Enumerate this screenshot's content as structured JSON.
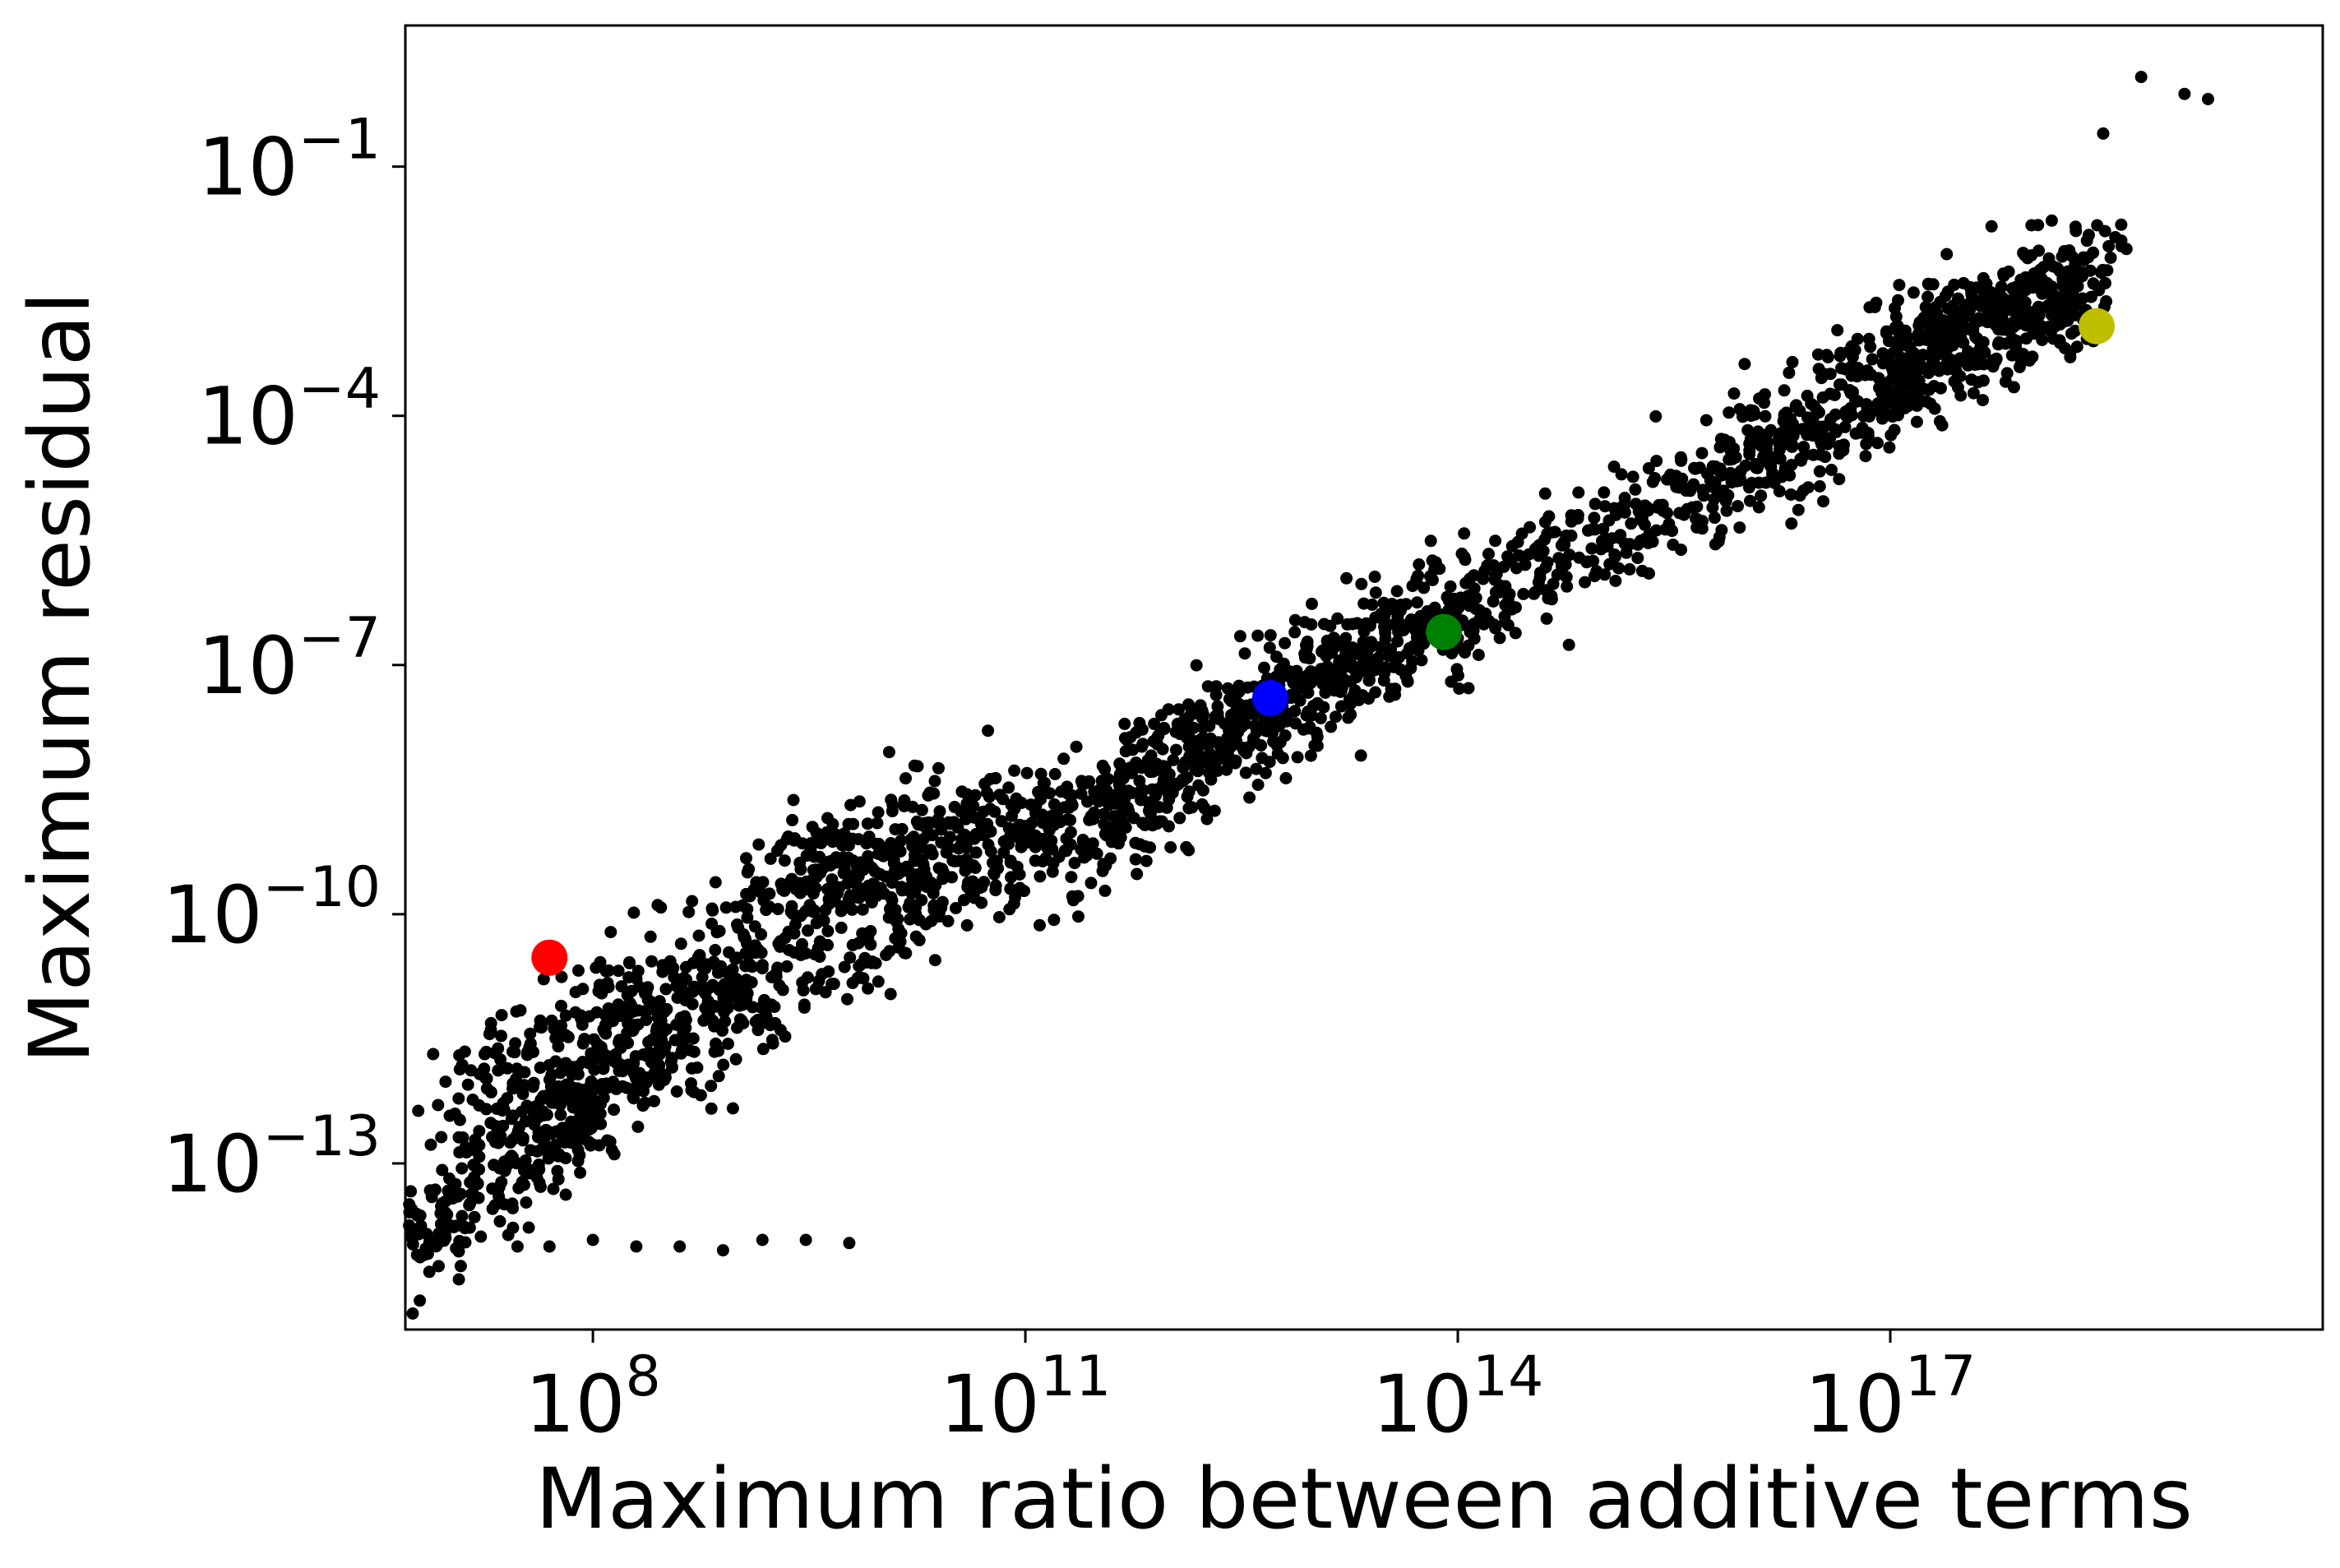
{
  "chart_data": {
    "type": "scatter",
    "title": "",
    "xlabel": "Maximum ratio between additive terms",
    "ylabel": "Maximum residual",
    "xscale": "log",
    "yscale": "log",
    "xlim": [
      5000000,
      1e+20
    ],
    "ylim": [
      1e-15,
      5
    ],
    "grid": false,
    "x_ticks": [
      {
        "value": 100000000.0,
        "base": "10",
        "exp": "8"
      },
      {
        "value": 100000000000.0,
        "base": "10",
        "exp": "11"
      },
      {
        "value": 100000000000000.0,
        "base": "10",
        "exp": "14"
      },
      {
        "value": 1e+17,
        "base": "10",
        "exp": "17"
      }
    ],
    "y_ticks": [
      {
        "value": 0.1,
        "base": "10",
        "exp": "−1"
      },
      {
        "value": 0.0001,
        "base": "10",
        "exp": "−4"
      },
      {
        "value": 1e-07,
        "base": "10",
        "exp": "−7"
      },
      {
        "value": 1e-10,
        "base": "10",
        "exp": "−10"
      },
      {
        "value": 1e-13,
        "base": "10",
        "exp": "−13"
      }
    ],
    "point_color": "#000000",
    "highlighted_points": [
      {
        "x": 50000000.0,
        "y": 3e-11,
        "color": "#ff0000"
      },
      {
        "x": 5000000000000.0,
        "y": 4e-08,
        "color": "#0000ff"
      },
      {
        "x": 80000000000000.0,
        "y": 2.5e-07,
        "color": "#008000"
      },
      {
        "x": 2.7e+18,
        "y": 0.0012,
        "color": "#bfbf00"
      }
    ],
    "outlier_points": [
      {
        "x": 30000000.0,
        "y": 1e-14
      },
      {
        "x": 50000000.0,
        "y": 1e-14
      },
      {
        "x": 100000000.0,
        "y": 1.2e-14
      },
      {
        "x": 200000000.0,
        "y": 1e-14
      },
      {
        "x": 400000000.0,
        "y": 1e-14
      },
      {
        "x": 800000000.0,
        "y": 9e-15
      },
      {
        "x": 1500000000.0,
        "y": 1.2e-14
      },
      {
        "x": 3000000000.0,
        "y": 1.2e-14
      },
      {
        "x": 6000000000.0,
        "y": 1.1e-14
      },
      {
        "x": 5.5e+18,
        "y": 1.2
      },
      {
        "x": 1.1e+19,
        "y": 0.75
      },
      {
        "x": 1.6e+19,
        "y": 0.65
      },
      {
        "x": 3e+18,
        "y": 0.25
      },
      {
        "x": 4e+18,
        "y": 0.02
      }
    ],
    "cloud_segments": [
      {
        "x0": 5000000.0,
        "y0": 1e-14,
        "x1": 100000000.0,
        "y1": 5e-13,
        "count": 240,
        "spread": 0.22
      },
      {
        "x0": 10000000.0,
        "y0": 5e-13,
        "x1": 2000000000.0,
        "y1": 1e-10,
        "count": 200,
        "spread": 0.28
      },
      {
        "x0": 50000000.0,
        "y0": 5e-13,
        "x1": 1000000000.0,
        "y1": 1e-11,
        "count": 300,
        "spread": 0.28
      },
      {
        "x0": 1000000000.0,
        "y0": 1e-11,
        "x1": 30000000000.0,
        "y1": 3e-10,
        "count": 180,
        "spread": 0.3
      },
      {
        "x0": 2000000000.0,
        "y0": 3e-10,
        "x1": 200000000000.0,
        "y1": 1e-09,
        "count": 380,
        "spread": 0.25
      },
      {
        "x0": 200000000000.0,
        "y0": 1e-09,
        "x1": 5000000000000.0,
        "y1": 3e-08,
        "count": 340,
        "spread": 0.24
      },
      {
        "x0": 5000000000000.0,
        "y0": 3e-08,
        "x1": 100000000000000.0,
        "y1": 5e-07,
        "count": 300,
        "spread": 0.24
      },
      {
        "x0": 100000000000000.0,
        "y0": 5e-07,
        "x1": 1e+16,
        "y1": 3e-05,
        "count": 280,
        "spread": 0.22
      },
      {
        "x0": 1e+16,
        "y0": 3e-05,
        "x1": 2e+17,
        "y1": 0.0005,
        "count": 260,
        "spread": 0.24
      },
      {
        "x0": 1e+17,
        "y0": 0.0005,
        "x1": 3e+18,
        "y1": 0.004,
        "count": 420,
        "spread": 0.24
      }
    ]
  }
}
